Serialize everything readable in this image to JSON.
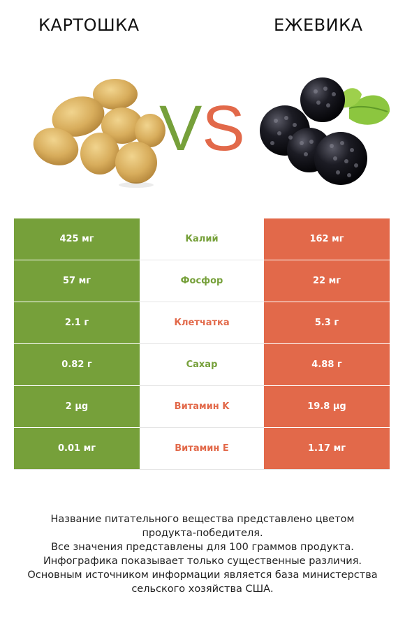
{
  "header": {
    "left_title": "КАРТОШКА",
    "right_title": "ЕЖЕВИКА",
    "vs_v": "V",
    "vs_s": "S"
  },
  "colors": {
    "left_winner": "#76a03a",
    "right_winner": "#e2694a"
  },
  "rows": [
    {
      "left": "425 мг",
      "nutrient": "Калий",
      "right": "162 мг",
      "winner": "left"
    },
    {
      "left": "57 мг",
      "nutrient": "Фосфор",
      "right": "22 мг",
      "winner": "left"
    },
    {
      "left": "2.1 г",
      "nutrient": "Клетчатка",
      "right": "5.3 г",
      "winner": "right"
    },
    {
      "left": "0.82 г",
      "nutrient": "Сахар",
      "right": "4.88 г",
      "winner": "left"
    },
    {
      "left": "2 µg",
      "nutrient": "Витамин K",
      "right": "19.8 µg",
      "winner": "right"
    },
    {
      "left": "0.01 мг",
      "nutrient": "Витамин E",
      "right": "1.17 мг",
      "winner": "right"
    }
  ],
  "footer": {
    "line1": "Название питательного вещества представлено цветом",
    "line2": "продукта-победителя.",
    "line3": "Все значения представлены для 100 граммов продукта.",
    "line4": "Инфографика показывает только существенные различия.",
    "line5": "Основным источником информации является база министерства",
    "line6": "сельского хозяйства США."
  }
}
